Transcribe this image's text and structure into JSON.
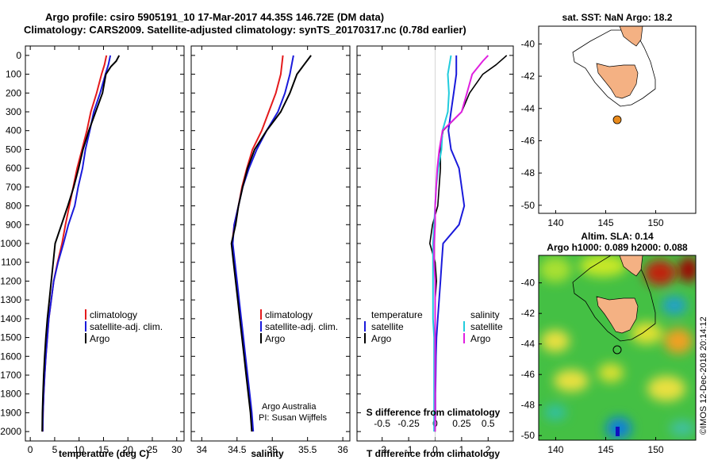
{
  "title": {
    "line1": "Argo profile: csiro 5905191_10 17-Mar-2017 44.35S 146.72E (DM data)",
    "line2": "Climatology: CARS2009. Satellite-adjusted climatology: synTS_20170317.nc (0.78d earlier)"
  },
  "colors": {
    "climatology": "#e41a1c",
    "satellite": "#1a1adb",
    "argo": "#000000",
    "salinity_sat": "#22ccdd",
    "salinity_argo": "#e020e0",
    "land": "#f4b183",
    "argo_marker": "#e88a1c"
  },
  "depth_axis": {
    "ticks": [
      0,
      100,
      200,
      300,
      400,
      500,
      600,
      700,
      800,
      900,
      1000,
      1100,
      1200,
      1300,
      1400,
      1500,
      1600,
      1700,
      1800,
      1900,
      2000
    ],
    "tick_labels": [
      "0",
      "100",
      "200",
      "300",
      "400",
      "500",
      "600",
      "700",
      "800",
      "900",
      "1000",
      "1100",
      "1200",
      "1300",
      "1400",
      "1500",
      "1600",
      "1700",
      "1800",
      "1900",
      "2000"
    ],
    "range": [
      -50,
      2050
    ]
  },
  "temperature_panel": {
    "xlabel": "temperature (deg C)",
    "xlim": [
      -1,
      31.5
    ],
    "xticks": [
      0,
      5,
      10,
      15,
      20,
      25,
      30
    ],
    "xtick_labels": [
      "0",
      "5",
      "10",
      "15",
      "20",
      "25",
      "30"
    ],
    "legend": [
      "climatology",
      "satellite-adj. clim.",
      "Argo"
    ]
  },
  "salinity_panel": {
    "xlabel": "salinity",
    "xlim": [
      33.85,
      36.1
    ],
    "xticks": [
      34,
      34.5,
      35,
      35.5,
      36
    ],
    "xtick_labels": [
      "34",
      "34.5",
      "35",
      "35.5",
      "36"
    ],
    "legend": [
      "climatology",
      "satellite-adj. clim.",
      "Argo"
    ],
    "credit1": "Argo Australia",
    "credit2": "PI: Susan Wijffels"
  },
  "difference_panel": {
    "xlabel": "T difference from climatology",
    "xlabel2": "S difference from climatology",
    "xlim": [
      -2.95,
      2.95
    ],
    "xticks": [
      -2,
      -1,
      0,
      1,
      2
    ],
    "xtick_labels": [
      "-2",
      "-1",
      "0",
      "1",
      "2"
    ],
    "s_ticks": [
      -0.5,
      -0.25,
      0,
      0.25,
      0.5
    ],
    "s_tick_labels": [
      "-0.5",
      "-0.25",
      "0",
      "0.25",
      "0.5"
    ],
    "legend_temp_title": "temperature",
    "legend_sal_title": "salinity",
    "legend_satellite": "satellite",
    "legend_argo": "Argo"
  },
  "sst_map": {
    "title": "sat. SST: NaN Argo: 18.2",
    "lon_ticks": [
      140,
      145,
      150
    ],
    "lon_tick_labels": [
      "140",
      "145",
      "150"
    ],
    "lat_ticks": [
      -40,
      -42,
      -44,
      -46,
      -48,
      -50
    ],
    "lat_tick_labels": [
      "-40",
      "-42",
      "-44",
      "-46",
      "-48",
      "-50"
    ],
    "lon_range": [
      138.3,
      154
    ],
    "lat_range": [
      -50.5,
      -38.9
    ],
    "argo_position": [
      146.72,
      -44.35
    ]
  },
  "sla_map": {
    "title": "Altim. SLA: 0.14",
    "subtitle": "Argo h1000: 0.089 h2000: 0.088",
    "lon_ticks": [
      140,
      145,
      150
    ],
    "lon_tick_labels": [
      "140",
      "145",
      "150"
    ],
    "lat_ticks": [
      -40,
      -42,
      -44,
      -46,
      -48,
      -50
    ],
    "lat_tick_labels": [
      "-40",
      "-42",
      "-44",
      "-46",
      "-48",
      "-50"
    ],
    "lon_range": [
      138.3,
      154
    ],
    "lat_range": [
      -50.3,
      -38.2
    ],
    "argo_position": [
      146.72,
      -44.35
    ]
  },
  "watermark": "©IMOS 12-Dec-2018 20:14:12",
  "chart_data": {
    "type": "line",
    "y_quantity": "depth",
    "temperature": {
      "series": [
        {
          "name": "climatology",
          "points": [
            [
              15.6,
              0
            ],
            [
              15.2,
              50
            ],
            [
              14.6,
              100
            ],
            [
              13.6,
              200
            ],
            [
              12.4,
              300
            ],
            [
              11.6,
              400
            ],
            [
              10.6,
              500
            ],
            [
              9.6,
              600
            ],
            [
              8.8,
              700
            ],
            [
              8.0,
              800
            ],
            [
              7.2,
              900
            ],
            [
              6.5,
              1000
            ],
            [
              5.6,
              1100
            ],
            [
              4.8,
              1200
            ],
            [
              4.3,
              1300
            ],
            [
              3.8,
              1400
            ],
            [
              3.5,
              1500
            ],
            [
              3.2,
              1600
            ],
            [
              2.95,
              1700
            ],
            [
              2.75,
              1800
            ],
            [
              2.6,
              1900
            ],
            [
              2.55,
              2000
            ]
          ]
        },
        {
          "name": "satellite-adj. clim.",
          "points": [
            [
              16.4,
              0
            ],
            [
              16.0,
              50
            ],
            [
              15.4,
              100
            ],
            [
              14.3,
              200
            ],
            [
              13.0,
              300
            ],
            [
              12.2,
              400
            ],
            [
              11.3,
              500
            ],
            [
              10.7,
              600
            ],
            [
              9.8,
              700
            ],
            [
              9.1,
              800
            ],
            [
              7.8,
              900
            ],
            [
              6.8,
              1000
            ],
            [
              5.7,
              1100
            ],
            [
              4.8,
              1200
            ],
            [
              4.3,
              1300
            ],
            [
              3.8,
              1400
            ],
            [
              3.5,
              1500
            ],
            [
              3.2,
              1600
            ],
            [
              2.95,
              1700
            ],
            [
              2.75,
              1800
            ],
            [
              2.6,
              1900
            ],
            [
              2.55,
              2000
            ]
          ]
        },
        {
          "name": "Argo",
          "points": [
            [
              18.2,
              0
            ],
            [
              17.6,
              30
            ],
            [
              16.5,
              60
            ],
            [
              15.5,
              100
            ],
            [
              14.8,
              200
            ],
            [
              13.4,
              300
            ],
            [
              12.0,
              400
            ],
            [
              10.8,
              500
            ],
            [
              9.9,
              600
            ],
            [
              8.9,
              700
            ],
            [
              7.7,
              800
            ],
            [
              6.4,
              900
            ],
            [
              5.1,
              1000
            ],
            [
              4.7,
              1100
            ],
            [
              4.3,
              1200
            ],
            [
              3.9,
              1300
            ],
            [
              3.5,
              1400
            ],
            [
              3.2,
              1500
            ],
            [
              2.95,
              1600
            ],
            [
              2.75,
              1700
            ],
            [
              2.6,
              1800
            ],
            [
              2.5,
              1900
            ],
            [
              2.45,
              2000
            ]
          ]
        }
      ]
    },
    "salinity": {
      "series": [
        {
          "name": "climatology",
          "points": [
            [
              35.15,
              0
            ],
            [
              35.12,
              100
            ],
            [
              35.05,
              200
            ],
            [
              34.95,
              300
            ],
            [
              34.85,
              400
            ],
            [
              34.72,
              500
            ],
            [
              34.64,
              600
            ],
            [
              34.57,
              700
            ],
            [
              34.52,
              800
            ],
            [
              34.46,
              900
            ],
            [
              34.43,
              1000
            ],
            [
              34.46,
              1100
            ],
            [
              34.49,
              1200
            ],
            [
              34.52,
              1300
            ],
            [
              34.55,
              1400
            ],
            [
              34.58,
              1500
            ],
            [
              34.61,
              1600
            ],
            [
              34.64,
              1700
            ],
            [
              34.67,
              1800
            ],
            [
              34.7,
              1900
            ],
            [
              34.72,
              2000
            ]
          ]
        },
        {
          "name": "satellite-adj. clim.",
          "points": [
            [
              35.3,
              0
            ],
            [
              35.25,
              100
            ],
            [
              35.18,
              200
            ],
            [
              35.08,
              300
            ],
            [
              34.92,
              400
            ],
            [
              34.78,
              500
            ],
            [
              34.67,
              600
            ],
            [
              34.58,
              700
            ],
            [
              34.52,
              800
            ],
            [
              34.46,
              900
            ],
            [
              34.44,
              1000
            ],
            [
              34.47,
              1100
            ],
            [
              34.5,
              1200
            ],
            [
              34.53,
              1300
            ],
            [
              34.56,
              1400
            ],
            [
              34.59,
              1500
            ],
            [
              34.62,
              1600
            ],
            [
              34.65,
              1700
            ],
            [
              34.68,
              1800
            ],
            [
              34.71,
              1900
            ],
            [
              34.73,
              2000
            ]
          ]
        },
        {
          "name": "Argo",
          "points": [
            [
              35.55,
              0
            ],
            [
              35.45,
              50
            ],
            [
              35.35,
              100
            ],
            [
              35.25,
              200
            ],
            [
              35.12,
              300
            ],
            [
              34.92,
              400
            ],
            [
              34.75,
              500
            ],
            [
              34.65,
              600
            ],
            [
              34.58,
              700
            ],
            [
              34.52,
              800
            ],
            [
              34.48,
              900
            ],
            [
              34.42,
              1000
            ],
            [
              34.45,
              1100
            ],
            [
              34.48,
              1200
            ],
            [
              34.51,
              1300
            ],
            [
              34.54,
              1400
            ],
            [
              34.57,
              1500
            ],
            [
              34.6,
              1600
            ],
            [
              34.63,
              1700
            ],
            [
              34.66,
              1800
            ],
            [
              34.69,
              1900
            ],
            [
              34.71,
              2000
            ]
          ]
        }
      ]
    },
    "temperature_difference": {
      "series": [
        {
          "name": "satellite",
          "points": [
            [
              0.8,
              0
            ],
            [
              0.8,
              100
            ],
            [
              0.7,
              200
            ],
            [
              0.6,
              300
            ],
            [
              0.5,
              400
            ],
            [
              0.6,
              500
            ],
            [
              0.9,
              600
            ],
            [
              1.0,
              700
            ],
            [
              1.1,
              800
            ],
            [
              0.9,
              900
            ],
            [
              0.3,
              1000
            ],
            [
              0.25,
              1100
            ],
            [
              0.2,
              1200
            ],
            [
              0.15,
              1300
            ],
            [
              0.1,
              1400
            ],
            [
              0.05,
              1500
            ],
            [
              0.03,
              1600
            ],
            [
              0.02,
              1700
            ],
            [
              0.01,
              1800
            ],
            [
              0.01,
              1900
            ],
            [
              0.0,
              2000
            ]
          ]
        },
        {
          "name": "Argo",
          "points": [
            [
              2.7,
              0
            ],
            [
              2.3,
              50
            ],
            [
              1.8,
              100
            ],
            [
              1.3,
              200
            ],
            [
              1.0,
              300
            ],
            [
              0.3,
              400
            ],
            [
              0.2,
              500
            ],
            [
              0.2,
              600
            ],
            [
              0.15,
              700
            ],
            [
              0.1,
              800
            ],
            [
              -0.1,
              900
            ],
            [
              -0.2,
              1000
            ],
            [
              0.0,
              1100
            ],
            [
              0.05,
              1200
            ],
            [
              0.0,
              1300
            ],
            [
              0.0,
              1400
            ],
            [
              0.0,
              1500
            ],
            [
              0.0,
              1600
            ],
            [
              0.0,
              1700
            ],
            [
              0.0,
              1800
            ],
            [
              0.0,
              1900
            ],
            [
              0.0,
              2000
            ]
          ]
        }
      ]
    },
    "salinity_difference": {
      "series": [
        {
          "name": "satellite",
          "points": [
            [
              0.15,
              0
            ],
            [
              0.12,
              100
            ],
            [
              0.13,
              200
            ],
            [
              0.12,
              300
            ],
            [
              0.07,
              400
            ],
            [
              0.06,
              500
            ],
            [
              0.03,
              600
            ],
            [
              0.01,
              700
            ],
            [
              0.0,
              800
            ],
            [
              -0.01,
              900
            ],
            [
              -0.02,
              1000
            ],
            [
              -0.02,
              1100
            ],
            [
              -0.02,
              1200
            ],
            [
              -0.02,
              1300
            ],
            [
              -0.02,
              1400
            ],
            [
              -0.01,
              1500
            ],
            [
              -0.01,
              1600
            ],
            [
              -0.01,
              1700
            ],
            [
              -0.01,
              1800
            ],
            [
              -0.01,
              1900
            ],
            [
              -0.01,
              2000
            ]
          ]
        },
        {
          "name": "Argo",
          "points": [
            [
              0.5,
              0
            ],
            [
              0.45,
              30
            ],
            [
              0.35,
              100
            ],
            [
              0.3,
              200
            ],
            [
              0.25,
              300
            ],
            [
              0.07,
              400
            ],
            [
              0.04,
              500
            ],
            [
              0.02,
              600
            ],
            [
              0.01,
              700
            ],
            [
              0.0,
              800
            ],
            [
              0.0,
              900
            ],
            [
              -0.01,
              1000
            ],
            [
              -0.01,
              1100
            ],
            [
              0.0,
              1200
            ],
            [
              0.0,
              1300
            ],
            [
              0.0,
              1400
            ],
            [
              0.0,
              1500
            ],
            [
              0.0,
              1600
            ],
            [
              0.0,
              1700
            ],
            [
              0.0,
              1800
            ],
            [
              0.0,
              1900
            ],
            [
              0.0,
              2000
            ]
          ]
        }
      ]
    }
  }
}
